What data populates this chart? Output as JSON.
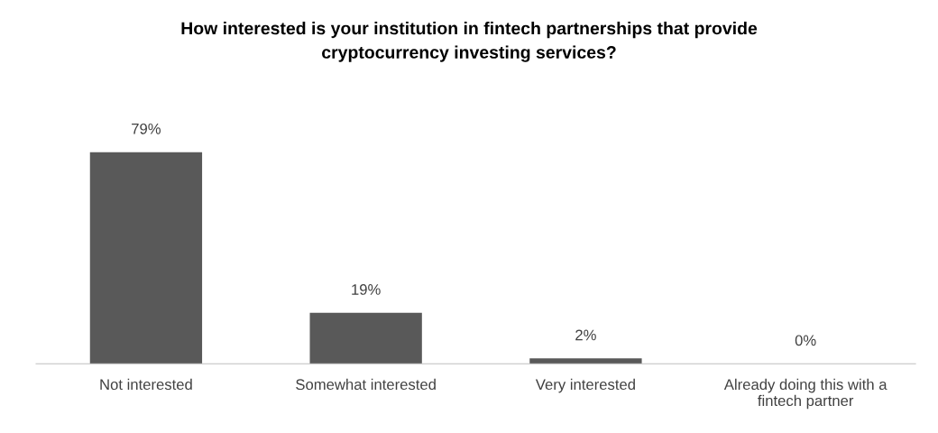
{
  "chart_data": {
    "type": "bar",
    "title": "How interested is your institution in fintech partnerships that provide\ncryptocurrency investing services?",
    "categories": [
      "Not interested",
      "Somewhat interested",
      "Very interested",
      "Already doing this with a\nfintech partner"
    ],
    "values": [
      79,
      19,
      2,
      0
    ],
    "color": "#595959",
    "tick_labels": "x",
    "value_labels": [
      "79%",
      "19%",
      "2%",
      "0%"
    ],
    "grid": false,
    "legend": false
  }
}
